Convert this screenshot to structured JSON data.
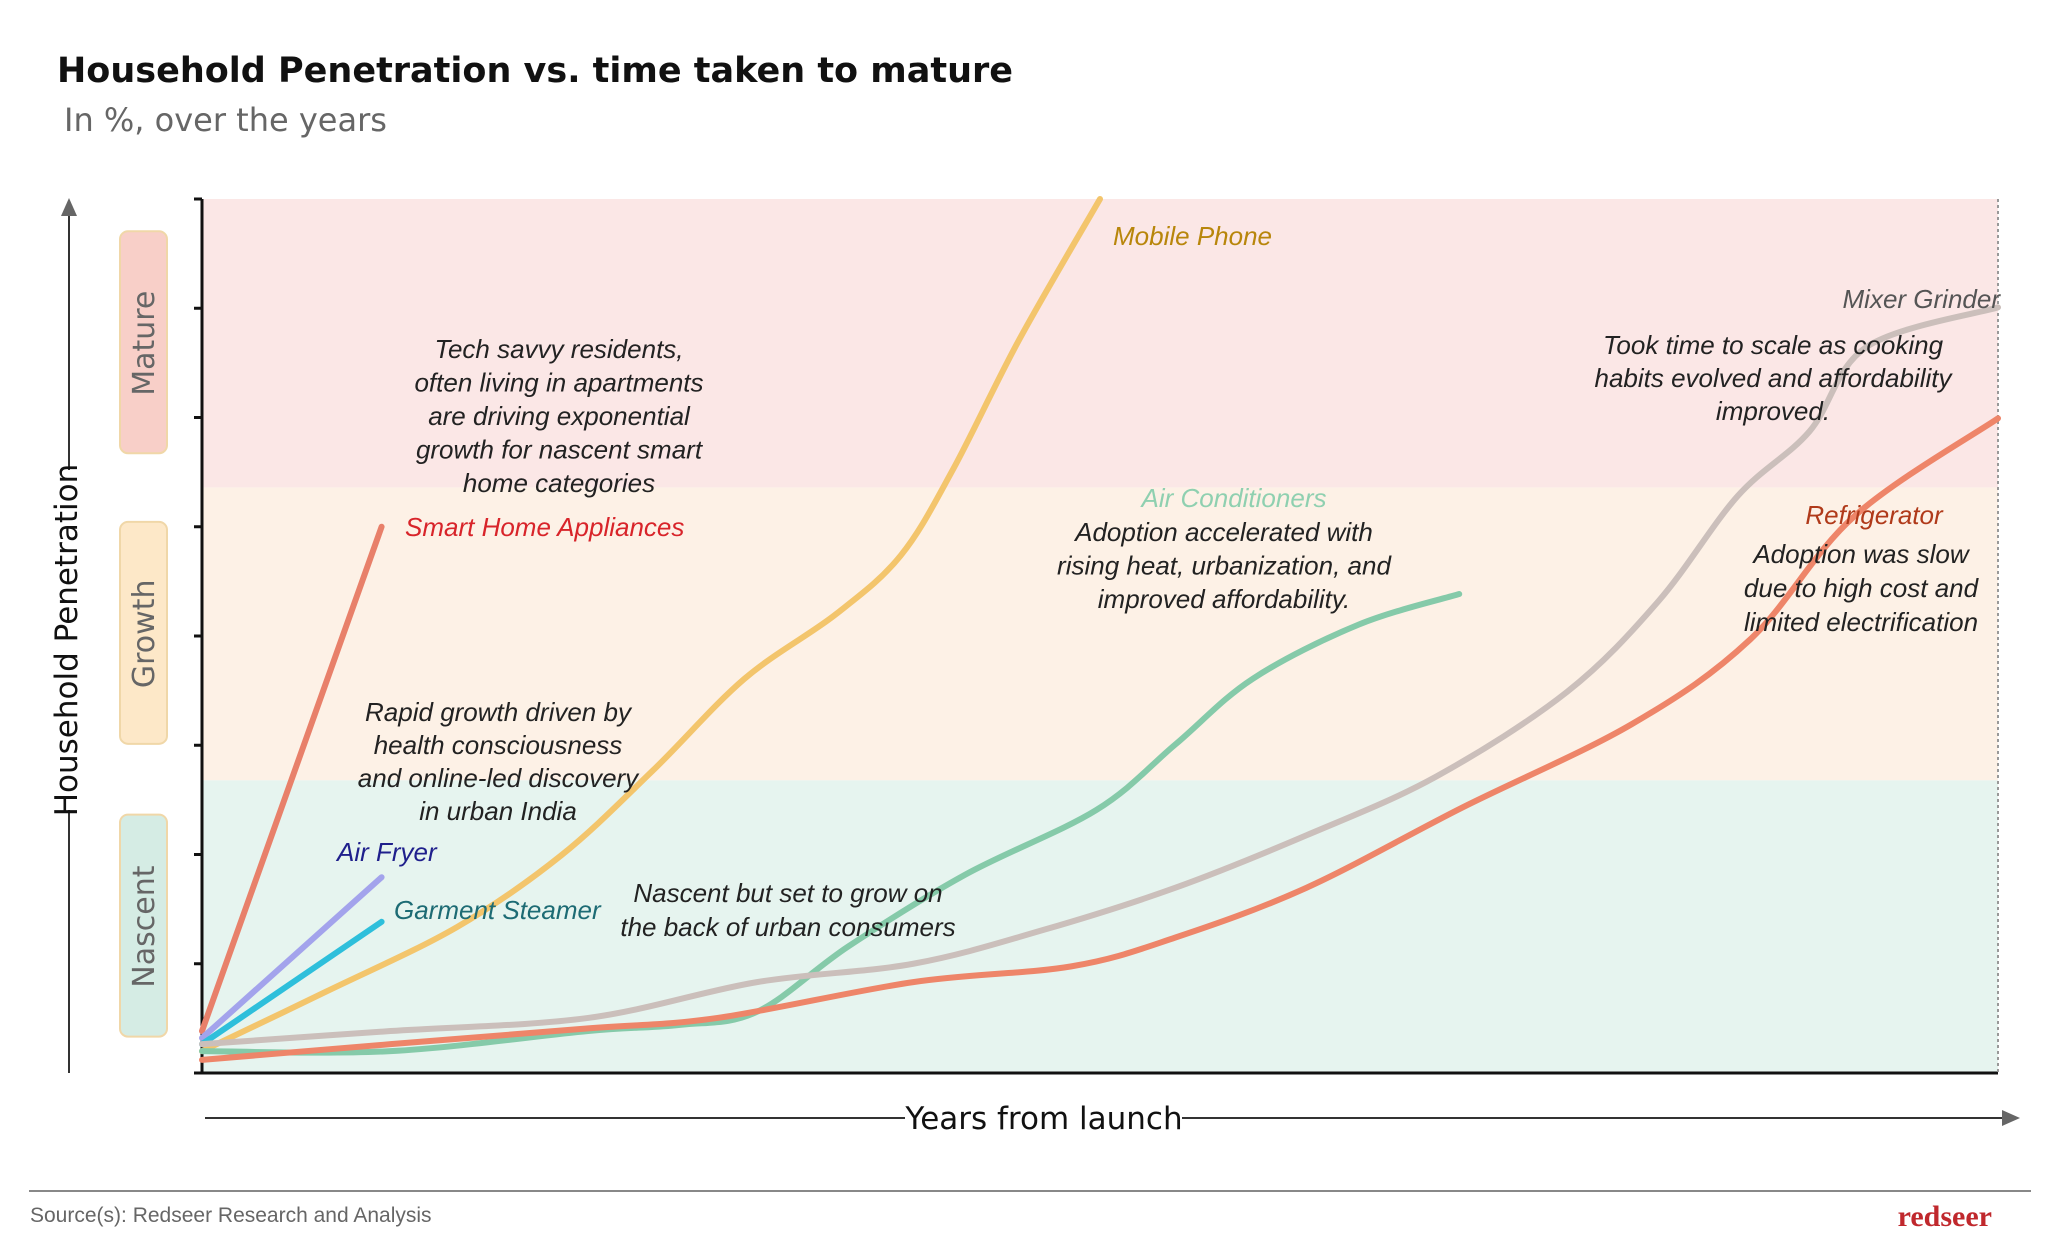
{
  "header": {
    "title": "Household Penetration vs. time taken to mature",
    "subtitle": "In %, over the years"
  },
  "footer": {
    "source": "Source(s): Redseer Research and Analysis",
    "logo_text": "redseer"
  },
  "chart_data": {
    "type": "line",
    "title": "Household Penetration vs. time taken to mature",
    "subtitle": "In %, over the years",
    "xlabel": "Years from launch",
    "ylabel": "Household Penetration",
    "xlim": [
      0,
      100
    ],
    "ylim": [
      0,
      100
    ],
    "tick_labels": false,
    "grid": false,
    "stages": [
      {
        "name": "Nascent",
        "from": 0,
        "to": 33.5,
        "color": "#e6f4ef",
        "box_color": "#d5ece4"
      },
      {
        "name": "Growth",
        "from": 33.5,
        "to": 67,
        "color": "#fdf1e6",
        "box_color": "#fde8c8"
      },
      {
        "name": "Mature",
        "from": 67,
        "to": 100,
        "color": "#fbe7e6",
        "box_color": "#f8cfc8"
      }
    ],
    "series": [
      {
        "name": "Smart Home Appliances",
        "color": "#e8806a",
        "label_color": "#d8242a",
        "x": [
          0,
          10
        ],
        "y": [
          4.8,
          62.5
        ]
      },
      {
        "name": "Air Fryer",
        "color": "#a3a3ec",
        "label_color": "#1f1f8c",
        "x": [
          0,
          10
        ],
        "y": [
          4.0,
          22.4
        ]
      },
      {
        "name": "Garment Steamer",
        "color": "#2ebfdb",
        "label_color": "#1d6b74",
        "x": [
          0,
          10
        ],
        "y": [
          3.3,
          17.3
        ]
      },
      {
        "name": "Mobile Phone",
        "color": "#f3c56c",
        "label_color": "#b8860b",
        "x": [
          0,
          6.9,
          14.2,
          20,
          25.1,
          30.2,
          35.3,
          38.9,
          41.8,
          45.5,
          50
        ],
        "y": [
          2.5,
          9.3,
          16.7,
          24.9,
          34.6,
          45.1,
          52.5,
          59.2,
          69,
          83.9,
          100
        ]
      },
      {
        "name": "Air Conditioners",
        "color": "#85caa9",
        "label_color": "#8fd0b0",
        "x": [
          0,
          10.5,
          21.5,
          26.6,
          30.9,
          36,
          42.5,
          49.8,
          54.2,
          58.5,
          64.4,
          70
        ],
        "y": [
          2.5,
          2.5,
          4.8,
          5.5,
          7,
          14.5,
          22.7,
          30.1,
          37.6,
          45.1,
          51.3,
          54.8
        ]
      },
      {
        "name": "Mixer Grinder",
        "color": "#cbbfbb",
        "label_color": "#555555",
        "x": [
          0,
          10.5,
          21.5,
          30.9,
          39.6,
          46.9,
          54.2,
          61.5,
          68.7,
          76,
          81.1,
          85.5,
          89.5,
          92.7,
          100
        ],
        "y": [
          3.3,
          4.8,
          6.3,
          10.4,
          12.5,
          16.4,
          21.2,
          27.2,
          33.9,
          43.6,
          54,
          66,
          73.4,
          83.1,
          87.6
        ]
      },
      {
        "name": "Refrigerator",
        "color": "#ee8569",
        "label_color": "#b03a1a",
        "x": [
          0,
          10.5,
          21.5,
          28.7,
          39.6,
          48.4,
          54.2,
          61.5,
          70.2,
          79.6,
          86.2,
          92,
          100
        ],
        "y": [
          1.5,
          3.3,
          5.1,
          6.3,
          10.4,
          12.2,
          15.5,
          21.2,
          30.4,
          39.9,
          49.6,
          63.7,
          74.9
        ]
      }
    ],
    "annotations": [
      {
        "lines": [
          "Tech savvy residents,",
          "often living in apartments",
          "are driving exponential",
          "growth for nascent smart",
          "home categories"
        ]
      },
      {
        "lines": [
          "Rapid growth driven by",
          "health consciousness",
          "and online-led discovery",
          "in urban India"
        ]
      },
      {
        "lines": [
          "Nascent but set to grow on",
          "the back of urban consumers"
        ]
      },
      {
        "lines": [
          "Adoption accelerated with",
          "rising heat, urbanization, and",
          "improved affordability."
        ]
      },
      {
        "lines": [
          "Took time to scale as cooking",
          "habits evolved and affordability",
          "improved."
        ]
      },
      {
        "lines": [
          "Adoption was slow",
          "due to high cost and",
          "limited electrification"
        ]
      }
    ]
  }
}
